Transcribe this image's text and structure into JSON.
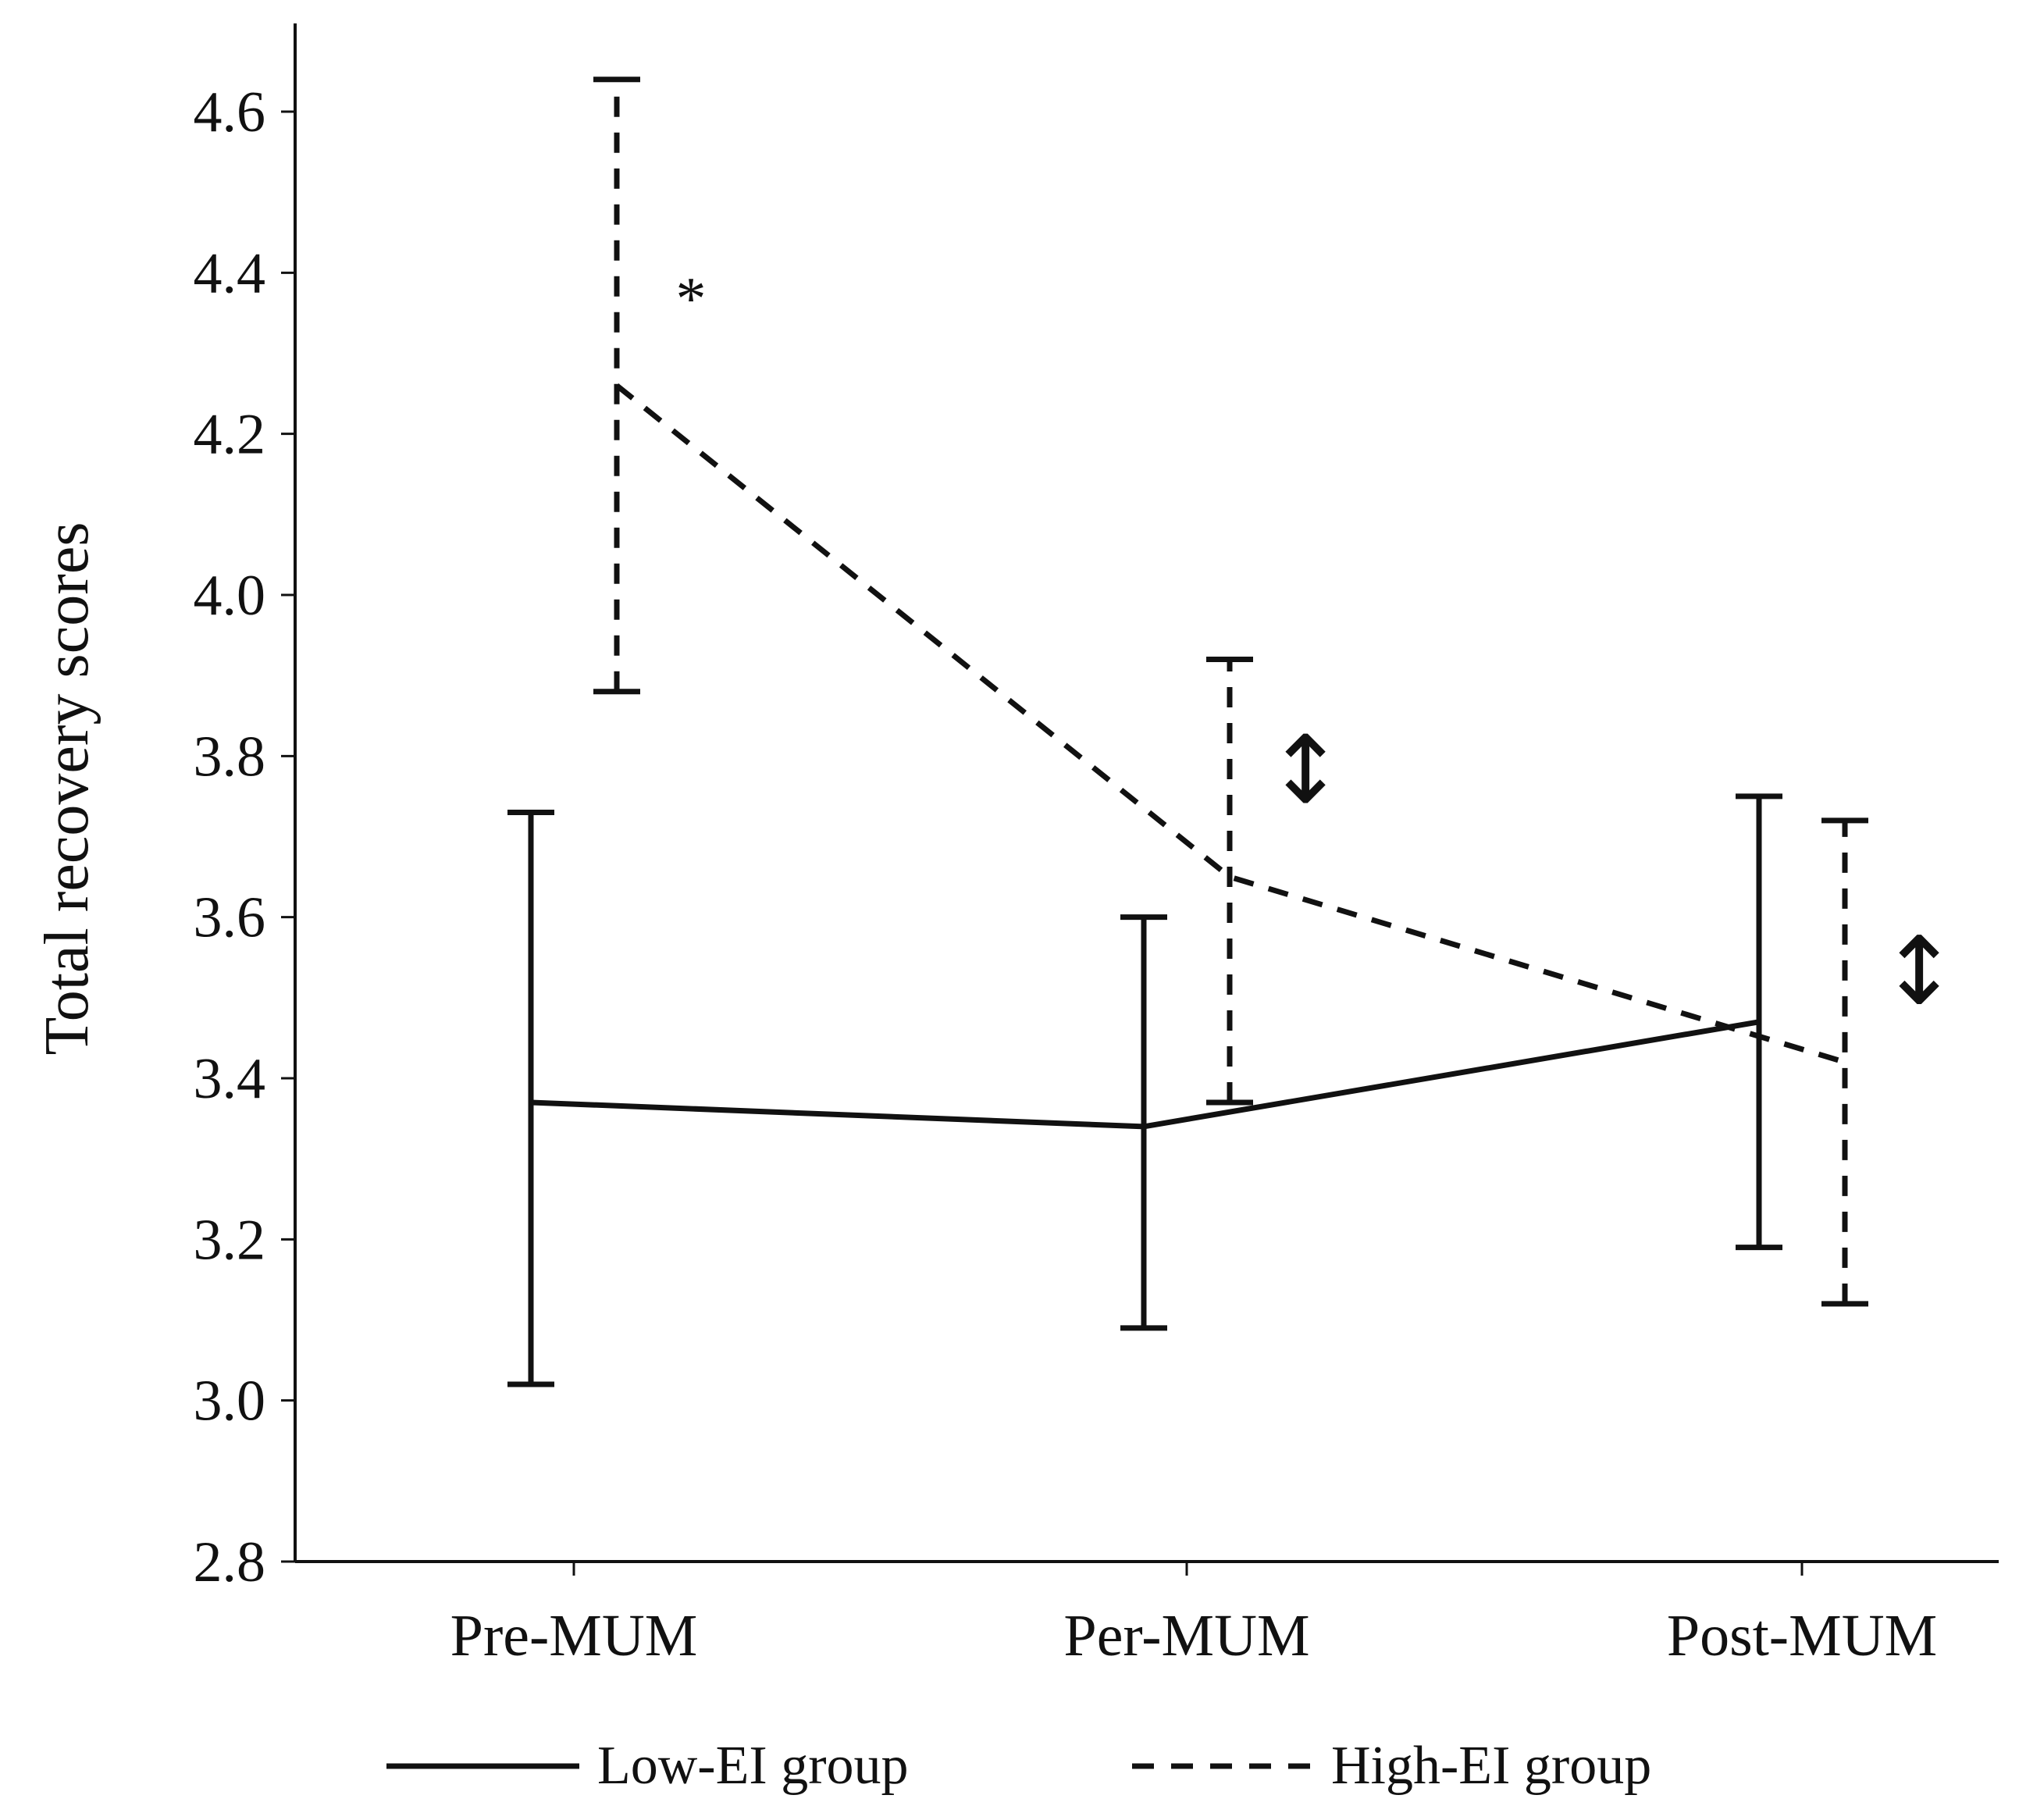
{
  "chart_data": {
    "type": "line",
    "title": "",
    "xlabel": "",
    "ylabel": "Total recovery scores",
    "categories": [
      "Pre-MUM",
      "Per-MUM",
      "Post-MUM"
    ],
    "ylim": [
      2.8,
      4.7
    ],
    "yticks": [
      "2.8",
      "3.0",
      "3.2",
      "3.4",
      "3.6",
      "3.8",
      "4.0",
      "4.2",
      "4.4",
      "4.6"
    ],
    "grid": false,
    "legend_position": "bottom",
    "series": [
      {
        "name": "Low-EI group",
        "style": "solid",
        "values": [
          3.37,
          3.34,
          3.47
        ],
        "error_low": [
          3.02,
          3.09,
          3.19
        ],
        "error_high": [
          3.73,
          3.6,
          3.75
        ]
      },
      {
        "name": "High-EI group",
        "style": "dashed",
        "values": [
          4.26,
          3.65,
          3.42
        ],
        "error_low": [
          3.88,
          3.37,
          3.12
        ],
        "error_high": [
          4.64,
          3.92,
          3.72
        ]
      }
    ],
    "annotations": [
      {
        "text": "*",
        "category": "Pre-MUM",
        "y": 4.37
      },
      {
        "text": "↕",
        "category": "Per-MUM",
        "y": 3.77
      },
      {
        "text": "↕",
        "category": "Post-MUM",
        "y": 3.52
      }
    ]
  }
}
